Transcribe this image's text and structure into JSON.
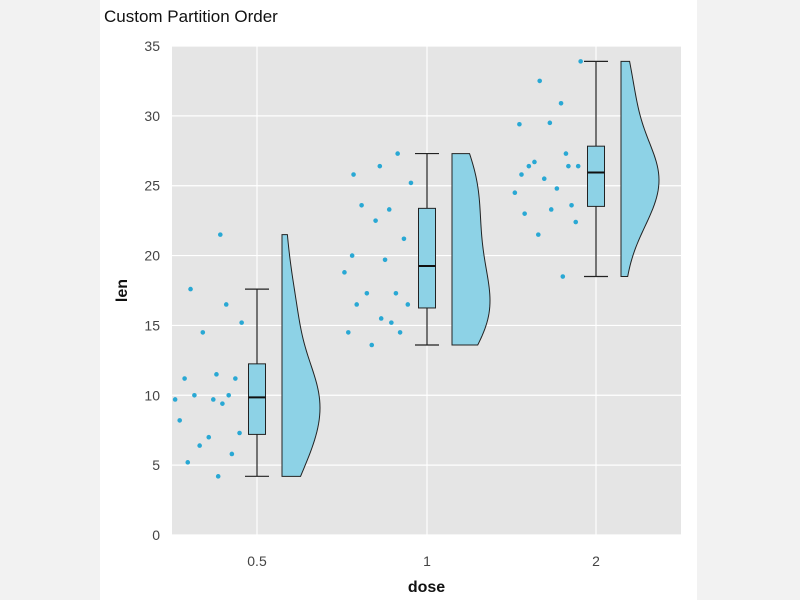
{
  "chart_data": {
    "type": "raincloud",
    "title": "Custom Partition Order",
    "xlabel": "dose",
    "ylabel": "len",
    "ylim": [
      0,
      35
    ],
    "yticks": [
      0,
      5,
      10,
      15,
      20,
      25,
      30,
      35
    ],
    "categories": [
      "0.5",
      "1",
      "2"
    ],
    "grid": true,
    "colors": {
      "fill": "#8dd2e6",
      "points": "#29a8d4",
      "panel": "#e5e5e5",
      "grid": "#ffffff",
      "outline": "#222222"
    },
    "series": [
      {
        "category": "0.5",
        "points": [
          4.2,
          5.2,
          5.8,
          6.4,
          7.0,
          7.3,
          8.2,
          9.4,
          9.7,
          9.7,
          10.0,
          10.0,
          11.2,
          11.2,
          11.5,
          14.5,
          15.2,
          16.5,
          17.6,
          21.5
        ],
        "box": {
          "min": 4.2,
          "q1": 7.2,
          "median": 9.85,
          "q3": 12.25,
          "max": 17.6
        },
        "violin_max": 21.5
      },
      {
        "category": "1",
        "points": [
          13.6,
          14.5,
          14.5,
          15.2,
          15.5,
          16.5,
          16.5,
          17.3,
          17.3,
          18.8,
          19.7,
          20.0,
          21.2,
          22.5,
          23.3,
          23.6,
          25.2,
          25.8,
          26.4,
          27.3
        ],
        "box": {
          "min": 13.6,
          "q1": 16.25,
          "median": 19.25,
          "q3": 23.38,
          "max": 27.3
        },
        "violin_max": 27.3
      },
      {
        "category": "2",
        "points": [
          18.5,
          21.5,
          22.4,
          23.0,
          23.3,
          23.6,
          24.5,
          24.8,
          25.5,
          26.4,
          26.4,
          26.4,
          26.7,
          27.3,
          29.4,
          29.5,
          30.9,
          32.5,
          33.9,
          25.8
        ],
        "box": {
          "min": 18.5,
          "q1": 23.52,
          "median": 25.95,
          "q3": 27.83,
          "max": 33.9
        },
        "violin_max": 33.9
      }
    ]
  }
}
